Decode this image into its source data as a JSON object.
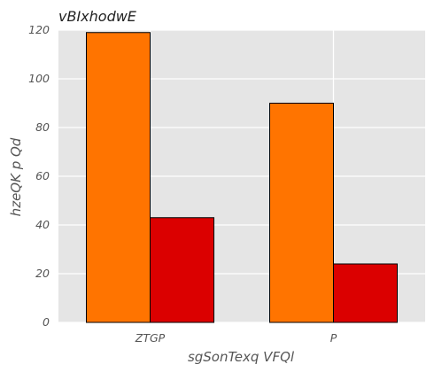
{
  "chart_data": {
    "type": "bar",
    "title": "vBIxhodwE",
    "xlabel": "sgSonTexq VFQl",
    "ylabel": "hzeQK p Qd",
    "categories": [
      "ZTGP",
      "P"
    ],
    "series": [
      {
        "values": [
          119,
          90
        ],
        "color": "#ff7400"
      },
      {
        "values": [
          43,
          24
        ],
        "color": "#db0000"
      }
    ],
    "ylim": [
      0,
      120
    ],
    "yticks": [
      0,
      20,
      40,
      60,
      80,
      100,
      120
    ],
    "grid": true,
    "background_color": "#e5e5e5",
    "grid_color": "#ffffff",
    "edge_color": "#000000"
  }
}
